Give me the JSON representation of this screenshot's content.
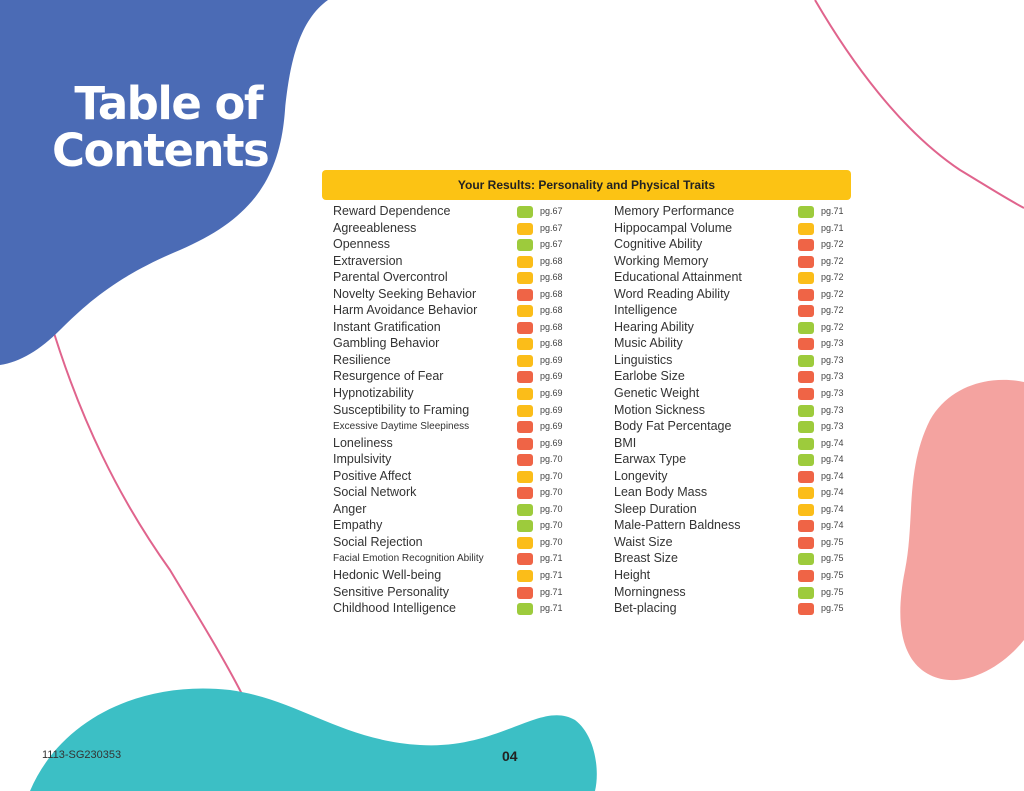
{
  "title": {
    "line1": "Table of",
    "line2": "Contents"
  },
  "banner": "Your Results: Personality and Physical Traits",
  "colors": {
    "green": "#9dcb3c",
    "yellow": "#fbbd19",
    "red": "#ef6446",
    "blue_blob": "#4b6bb5",
    "teal_blob": "#3cbfc5",
    "pink_blob": "#f4a3a0",
    "line": "#e0648d"
  },
  "left_items": [
    {
      "label": "Reward Dependence",
      "status": "green",
      "page": "pg.67"
    },
    {
      "label": "Agreeableness",
      "status": "yellow",
      "page": "pg.67"
    },
    {
      "label": "Openness",
      "status": "green",
      "page": "pg.67"
    },
    {
      "label": "Extraversion",
      "status": "yellow",
      "page": "pg.68"
    },
    {
      "label": "Parental Overcontrol",
      "status": "yellow",
      "page": "pg.68"
    },
    {
      "label": "Novelty Seeking Behavior",
      "status": "red",
      "page": "pg.68"
    },
    {
      "label": "Harm Avoidance Behavior",
      "status": "yellow",
      "page": "pg.68"
    },
    {
      "label": "Instant Gratification",
      "status": "red",
      "page": "pg.68"
    },
    {
      "label": "Gambling Behavior",
      "status": "yellow",
      "page": "pg.68"
    },
    {
      "label": "Resilience",
      "status": "yellow",
      "page": "pg.69"
    },
    {
      "label": "Resurgence of Fear",
      "status": "red",
      "page": "pg.69"
    },
    {
      "label": "Hypnotizability",
      "status": "yellow",
      "page": "pg.69"
    },
    {
      "label": "Susceptibility to Framing",
      "status": "yellow",
      "page": "pg.69"
    },
    {
      "label": "Excessive Daytime Sleepiness",
      "status": "red",
      "page": "pg.69",
      "small": true
    },
    {
      "label": "Loneliness",
      "status": "red",
      "page": "pg.69"
    },
    {
      "label": "Impulsivity",
      "status": "red",
      "page": "pg.70"
    },
    {
      "label": "Positive Affect",
      "status": "yellow",
      "page": "pg.70"
    },
    {
      "label": "Social Network",
      "status": "red",
      "page": "pg.70"
    },
    {
      "label": "Anger",
      "status": "green",
      "page": "pg.70"
    },
    {
      "label": "Empathy",
      "status": "green",
      "page": "pg.70"
    },
    {
      "label": "Social Rejection",
      "status": "yellow",
      "page": "pg.70"
    },
    {
      "label": "Facial Emotion Recognition Ability",
      "status": "red",
      "page": "pg.71",
      "small": true
    },
    {
      "label": "Hedonic Well-being",
      "status": "yellow",
      "page": "pg.71"
    },
    {
      "label": "Sensitive Personality",
      "status": "red",
      "page": "pg.71"
    },
    {
      "label": "Childhood Intelligence",
      "status": "green",
      "page": "pg.71"
    }
  ],
  "right_items": [
    {
      "label": "Memory Performance",
      "status": "green",
      "page": "pg.71"
    },
    {
      "label": "Hippocampal Volume",
      "status": "yellow",
      "page": "pg.71"
    },
    {
      "label": "Cognitive Ability",
      "status": "red",
      "page": "pg.72"
    },
    {
      "label": "Working Memory",
      "status": "red",
      "page": "pg.72"
    },
    {
      "label": "Educational Attainment",
      "status": "yellow",
      "page": "pg.72"
    },
    {
      "label": "Word Reading Ability",
      "status": "red",
      "page": "pg.72"
    },
    {
      "label": "Intelligence",
      "status": "red",
      "page": "pg.72"
    },
    {
      "label": "Hearing Ability",
      "status": "green",
      "page": "pg.72"
    },
    {
      "label": "Music Ability",
      "status": "red",
      "page": "pg.73"
    },
    {
      "label": "Linguistics",
      "status": "green",
      "page": "pg.73"
    },
    {
      "label": "Earlobe Size",
      "status": "red",
      "page": "pg.73"
    },
    {
      "label": "Genetic Weight",
      "status": "red",
      "page": "pg.73"
    },
    {
      "label": "Motion Sickness",
      "status": "green",
      "page": "pg.73"
    },
    {
      "label": "Body Fat Percentage",
      "status": "green",
      "page": "pg.73"
    },
    {
      "label": "BMI",
      "status": "green",
      "page": "pg.74"
    },
    {
      "label": "Earwax Type",
      "status": "green",
      "page": "pg.74"
    },
    {
      "label": "Longevity",
      "status": "red",
      "page": "pg.74"
    },
    {
      "label": "Lean Body Mass",
      "status": "yellow",
      "page": "pg.74"
    },
    {
      "label": "Sleep Duration",
      "status": "yellow",
      "page": "pg.74"
    },
    {
      "label": "Male-Pattern Baldness",
      "status": "red",
      "page": "pg.74"
    },
    {
      "label": "Waist Size",
      "status": "red",
      "page": "pg.75"
    },
    {
      "label": "Breast Size",
      "status": "green",
      "page": "pg.75"
    },
    {
      "label": "Height",
      "status": "red",
      "page": "pg.75"
    },
    {
      "label": "Morningness",
      "status": "green",
      "page": "pg.75"
    },
    {
      "label": "Bet-placing",
      "status": "red",
      "page": "pg.75"
    }
  ],
  "footer": {
    "code": "1113-SG230353",
    "page_number": "04"
  }
}
